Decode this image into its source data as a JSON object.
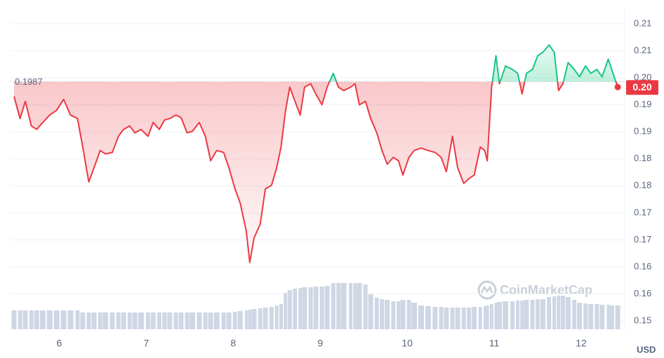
{
  "chart_data": {
    "type": "line",
    "x": [
      5.48,
      5.55,
      5.61,
      5.68,
      5.74,
      5.81,
      5.89,
      5.97,
      6.05,
      6.13,
      6.21,
      6.27,
      6.34,
      6.4,
      6.47,
      6.53,
      6.61,
      6.68,
      6.74,
      6.81,
      6.87,
      6.94,
      7.02,
      7.08,
      7.15,
      7.21,
      7.27,
      7.34,
      7.4,
      7.47,
      7.53,
      7.61,
      7.68,
      7.74,
      7.81,
      7.89,
      7.95,
      8.02,
      8.08,
      8.15,
      8.19,
      8.24,
      8.31,
      8.37,
      8.44,
      8.5,
      8.55,
      8.6,
      8.65,
      8.71,
      8.77,
      8.82,
      8.89,
      8.95,
      9.02,
      9.08,
      9.15,
      9.21,
      9.27,
      9.35,
      9.4,
      9.45,
      9.52,
      9.58,
      9.65,
      9.71,
      9.77,
      9.84,
      9.9,
      9.95,
      10.02,
      10.08,
      10.16,
      10.24,
      10.32,
      10.39,
      10.45,
      10.52,
      10.58,
      10.65,
      10.71,
      10.77,
      10.84,
      10.89,
      10.92,
      10.97,
      11.02,
      11.06,
      11.13,
      11.21,
      11.27,
      11.32,
      11.37,
      11.44,
      11.5,
      11.56,
      11.63,
      11.69,
      11.74,
      11.79,
      11.85,
      11.92,
      11.98,
      12.05,
      12.11,
      12.18,
      12.24,
      12.31,
      12.35,
      12.42
    ],
    "values": [
      0.1957,
      0.1912,
      0.1947,
      0.1897,
      0.189,
      0.1904,
      0.1919,
      0.1929,
      0.1951,
      0.1919,
      0.1912,
      0.1854,
      0.1783,
      0.1812,
      0.1847,
      0.184,
      0.1843,
      0.1876,
      0.189,
      0.1897,
      0.1883,
      0.189,
      0.1876,
      0.1904,
      0.189,
      0.1909,
      0.1912,
      0.1919,
      0.1914,
      0.1883,
      0.1886,
      0.1904,
      0.1876,
      0.1826,
      0.1847,
      0.1843,
      0.1812,
      0.1769,
      0.174,
      0.1683,
      0.1619,
      0.1669,
      0.1697,
      0.1769,
      0.1776,
      0.1812,
      0.1854,
      0.1926,
      0.1976,
      0.1947,
      0.1919,
      0.1976,
      0.1983,
      0.1962,
      0.194,
      0.1976,
      0.2004,
      0.1976,
      0.1969,
      0.1976,
      0.1983,
      0.194,
      0.1947,
      0.1912,
      0.1883,
      0.1847,
      0.1819,
      0.1833,
      0.1826,
      0.1797,
      0.1833,
      0.1847,
      0.1852,
      0.1847,
      0.1843,
      0.1833,
      0.1804,
      0.1876,
      0.1812,
      0.178,
      0.179,
      0.1797,
      0.1854,
      0.1847,
      0.1826,
      0.1976,
      0.204,
      0.1983,
      0.2019,
      0.2012,
      0.2004,
      0.1962,
      0.2004,
      0.2012,
      0.204,
      0.2047,
      0.2062,
      0.2047,
      0.1969,
      0.1983,
      0.2026,
      0.2012,
      0.1997,
      0.2019,
      0.2004,
      0.2012,
      0.1997,
      0.2033,
      0.2012,
      0.1976
    ],
    "volume": [
      27,
      27,
      27,
      27,
      27,
      27,
      27,
      27,
      27,
      27,
      27,
      24,
      24,
      24,
      24,
      24,
      24,
      24,
      24,
      24,
      24,
      24,
      24,
      24,
      24,
      24,
      24,
      24,
      24,
      24,
      24,
      24,
      24,
      24,
      24,
      24,
      24,
      25,
      26,
      27,
      28,
      29,
      30,
      31,
      32,
      34,
      36,
      52,
      56,
      58,
      59,
      60,
      60,
      61,
      61,
      62,
      66,
      66,
      66,
      66,
      66,
      66,
      64,
      50,
      45,
      43,
      42,
      40,
      40,
      42,
      42,
      38,
      34,
      33,
      32,
      32,
      31,
      31,
      31,
      31,
      31,
      32,
      32,
      33,
      34,
      36,
      38,
      39,
      40,
      40,
      41,
      41,
      42,
      42,
      43,
      43,
      46,
      47,
      48,
      48,
      46,
      42,
      38,
      37,
      36,
      36,
      35,
      35,
      34,
      34
    ],
    "reference": 0.1987,
    "current_price": {
      "value": 0.1976,
      "label": "0.20"
    },
    "currency": "USD",
    "watermark": "CoinMarketCap",
    "color_above": "#16c784",
    "color_below": "#ea3943",
    "volume_color": "#cfd6e4",
    "grid": true,
    "xlim": [
      5.44,
      12.5
    ],
    "xticks": [
      6,
      7,
      8,
      9,
      10,
      11,
      12
    ],
    "ylim": [
      0.1483,
      0.2132
    ],
    "yticks": [
      {
        "value": 0.15,
        "label": "0.15"
      },
      {
        "value": 0.1555,
        "label": "0.16"
      },
      {
        "value": 0.161,
        "label": "0.16"
      },
      {
        "value": 0.1665,
        "label": "0.17"
      },
      {
        "value": 0.172,
        "label": "0.17"
      },
      {
        "value": 0.1775,
        "label": "0.18"
      },
      {
        "value": 0.183,
        "label": "0.18"
      },
      {
        "value": 0.1885,
        "label": "0.19"
      },
      {
        "value": 0.194,
        "label": "0.19"
      },
      {
        "value": 0.1995,
        "label": "0.20"
      },
      {
        "value": 0.205,
        "label": "0.21"
      },
      {
        "value": 0.2105,
        "label": "0.21"
      }
    ]
  }
}
